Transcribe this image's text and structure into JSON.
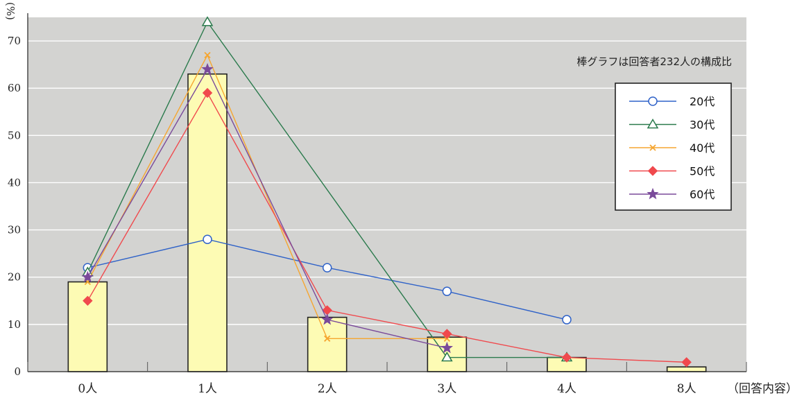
{
  "chart_data": {
    "type": "bar",
    "y_unit_label": "(%)",
    "x_axis_note": "（回答内容）",
    "annotation": "棒グラフは回答者232人の構成比",
    "categories": [
      "0人",
      "1人",
      "2人",
      "3人",
      "4人",
      "8人"
    ],
    "ylim": [
      0,
      75
    ],
    "yticks": [
      0,
      10,
      20,
      30,
      40,
      50,
      60,
      70
    ],
    "grid": true,
    "legend_position": "right",
    "bar_series": {
      "values": [
        19,
        63,
        11.5,
        7.3,
        3,
        1
      ],
      "color": "#fdfbb4"
    },
    "line_series": [
      {
        "name": "20代",
        "marker": "circle",
        "color": "#2f62c8",
        "values": [
          22,
          28,
          22,
          17,
          11,
          null
        ]
      },
      {
        "name": "30代",
        "marker": "triangle",
        "color": "#2a7a4c",
        "values": [
          21,
          74,
          null,
          3,
          3,
          null
        ]
      },
      {
        "name": "40代",
        "marker": "x",
        "color": "#f6a630",
        "values": [
          19,
          67,
          7,
          7,
          null,
          null
        ]
      },
      {
        "name": "50代",
        "marker": "diamond",
        "color": "#f0494d",
        "values": [
          15,
          59,
          13,
          8,
          3,
          2
        ]
      },
      {
        "name": "60代",
        "marker": "star",
        "color": "#7a4a9a",
        "values": [
          20,
          64,
          11,
          5,
          null,
          null
        ]
      }
    ]
  },
  "colors": {
    "plot_background": "#d3d3d1",
    "gridline": "#ffffff",
    "bar_edge": "#222222"
  }
}
